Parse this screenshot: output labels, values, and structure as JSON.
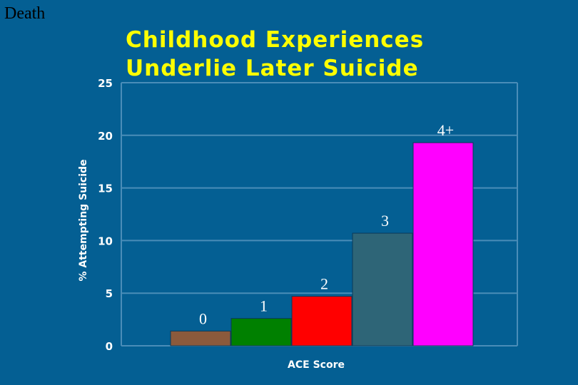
{
  "corner_label": "Death",
  "chart_data": {
    "type": "bar",
    "title_line1": "Childhood Experiences",
    "title_line2": "Underlie Later Suicide",
    "xlabel": "ACE Score",
    "ylabel": "% Attempting Suicide",
    "ylim": [
      0,
      25
    ],
    "yticks": [
      "0",
      "5",
      "10",
      "15",
      "20",
      "25"
    ],
    "categories": [
      "0",
      "1",
      "2",
      "3",
      "4+"
    ],
    "values": [
      1.4,
      2.6,
      4.7,
      10.7,
      19.3
    ],
    "grid": true,
    "colors": {
      "background": "#045f93",
      "title": "#ffff00",
      "axis_text": "#ffffff",
      "category_label": "#ffffff",
      "gridline": "#4a8db8",
      "bars": [
        "#8b5a3c",
        "#008000",
        "#ff0000",
        "#2e6577",
        "#ff00ff"
      ]
    }
  }
}
